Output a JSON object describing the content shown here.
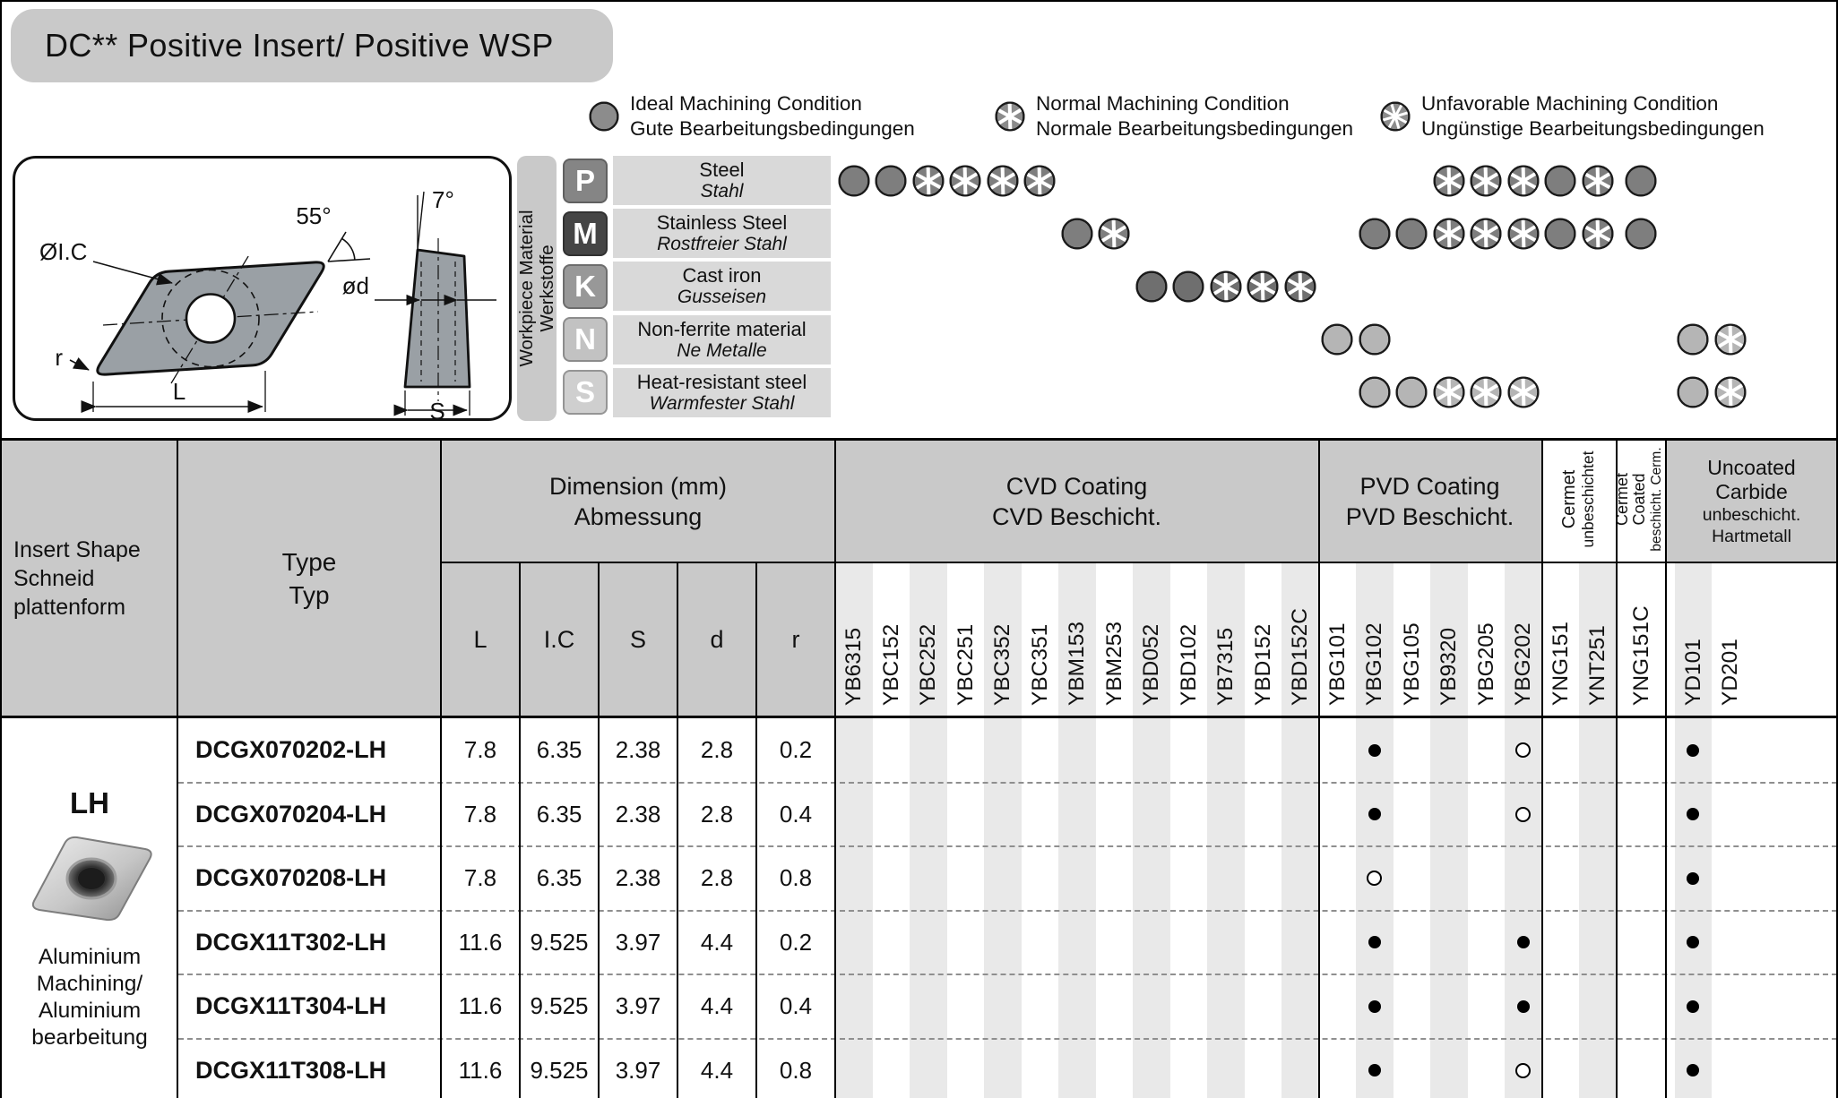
{
  "title": "DC** Positive Insert/ Positive WSP",
  "legend": [
    {
      "line1": "Ideal Machining Condition",
      "line2": "Gute Bearbeitungsbedingungen"
    },
    {
      "line1": "Normal Machining Condition",
      "line2": "Normale Bearbeitungsbedingungen"
    },
    {
      "line1": "Unfavorable Machining Condition",
      "line2": "Ungünstige Bearbeitungsbedingungen"
    }
  ],
  "drawing": {
    "angle_main": "55°",
    "angle_side": "7°",
    "ic": "ØI.C",
    "od": "ød",
    "r": "r",
    "L": "L",
    "S": "S"
  },
  "workpiece": {
    "side_label_line1": "Workpiece Material",
    "side_label_line2": "Werkstoffe",
    "rows": [
      {
        "code": "P",
        "name_en": "Steel",
        "name_de": "Stahl",
        "box_color": "#858585",
        "circle_color": "#7e7e7e",
        "marks": [
          {
            "col": "YB6315",
            "t": "ideal"
          },
          {
            "col": "YBC152",
            "t": "ideal"
          },
          {
            "col": "YBC252",
            "t": "normal"
          },
          {
            "col": "YBC251",
            "t": "normal"
          },
          {
            "col": "YBC352",
            "t": "normal"
          },
          {
            "col": "YBC351",
            "t": "normal"
          },
          {
            "col": "YB9320",
            "t": "normal"
          },
          {
            "col": "YBG205",
            "t": "normal"
          },
          {
            "col": "YBG202",
            "t": "normal"
          },
          {
            "col": "YNG151",
            "t": "ideal"
          },
          {
            "col": "YNT251",
            "t": "normal"
          },
          {
            "col": "YNG151C",
            "t": "ideal"
          }
        ]
      },
      {
        "code": "M",
        "name_en": "Stainless Steel",
        "name_de": "Rostfreier Stahl",
        "box_color": "#454545",
        "circle_color": "#7e7e7e",
        "marks": [
          {
            "col": "YBM153",
            "t": "ideal"
          },
          {
            "col": "YBM253",
            "t": "normal"
          },
          {
            "col": "YBG102",
            "t": "ideal"
          },
          {
            "col": "YBG105",
            "t": "ideal"
          },
          {
            "col": "YB9320",
            "t": "normal"
          },
          {
            "col": "YBG205",
            "t": "normal"
          },
          {
            "col": "YBG202",
            "t": "normal"
          },
          {
            "col": "YNG151",
            "t": "ideal"
          },
          {
            "col": "YNT251",
            "t": "normal"
          },
          {
            "col": "YNG151C",
            "t": "ideal"
          }
        ]
      },
      {
        "code": "K",
        "name_en": "Cast iron",
        "name_de": "Gusseisen",
        "box_color": "#989898",
        "circle_color": "#6f6f6f",
        "marks": [
          {
            "col": "YBD052",
            "t": "ideal"
          },
          {
            "col": "YBD102",
            "t": "ideal"
          },
          {
            "col": "YB7315",
            "t": "normal"
          },
          {
            "col": "YBD152",
            "t": "normal"
          },
          {
            "col": "YBD152C",
            "t": "normal"
          }
        ]
      },
      {
        "code": "N",
        "name_en": "Non-ferrite material",
        "name_de": "Ne Metalle",
        "box_color": "#c2c2c2",
        "circle_color": "#b5b5b5",
        "marks": [
          {
            "col": "YBG101",
            "t": "ideal"
          },
          {
            "col": "YBG102",
            "t": "ideal"
          },
          {
            "col": "YD101",
            "t": "ideal"
          },
          {
            "col": "YD201",
            "t": "normal"
          }
        ]
      },
      {
        "code": "S",
        "name_en": "Heat-resistant steel",
        "name_de": "Warmfester Stahl",
        "box_color": "#cfcfcf",
        "circle_color": "#b5b5b5",
        "marks": [
          {
            "col": "YBG102",
            "t": "ideal"
          },
          {
            "col": "YBG105",
            "t": "ideal"
          },
          {
            "col": "YB9320",
            "t": "normal"
          },
          {
            "col": "YBG205",
            "t": "normal"
          },
          {
            "col": "YBG202",
            "t": "normal"
          },
          {
            "col": "YD101",
            "t": "ideal"
          },
          {
            "col": "YD201",
            "t": "normal"
          }
        ]
      }
    ]
  },
  "table": {
    "headers": {
      "insert_shape": [
        "Insert Shape",
        "Schneid",
        "plattenform"
      ],
      "type": [
        "Type",
        "Typ"
      ],
      "dimension": [
        "Dimension (mm)",
        "Abmessung"
      ],
      "dim_cols": [
        "L",
        "I.C",
        "S",
        "d",
        "r"
      ],
      "cvd": [
        "CVD Coating",
        "CVD Beschicht."
      ],
      "pvd": [
        "PVD Coating",
        "PVD Beschicht."
      ],
      "cermet_uncoated": [
        "Cermet",
        "unbeschichtet"
      ],
      "cermet_coated": [
        "Cermet",
        "Coated",
        "beschicht. Cerm."
      ],
      "uncoated_carbide": [
        "Uncoated",
        "Carbide",
        "unbeschicht.",
        "Hartmetall"
      ]
    },
    "coating_columns": {
      "cvd": [
        "YB6315",
        "YBC152",
        "YBC252",
        "YBC251",
        "YBC352",
        "YBC351",
        "YBM153",
        "YBM253",
        "YBD052",
        "YBD102",
        "YB7315",
        "YBD152",
        "YBD152C"
      ],
      "pvd": [
        "YBG101",
        "YBG102",
        "YBG105",
        "YB9320",
        "YBG205",
        "YBG202"
      ],
      "cermet_uncoated": [
        "YNG151",
        "YNT251"
      ],
      "cermet_coated": [
        "YNG151C"
      ],
      "uncoated_carbide": [
        "YD101",
        "YD201"
      ]
    },
    "group": {
      "shape_code": "LH",
      "desc_lines": [
        "Aluminium",
        "Machining/",
        "Aluminium",
        "bearbeitung"
      ]
    },
    "rows": [
      {
        "type": "DCGX070202-LH",
        "dims": [
          "7.8",
          "6.35",
          "2.38",
          "2.8",
          "0.2"
        ],
        "marks": [
          {
            "col": "YBG102",
            "m": "filled"
          },
          {
            "col": "YBG202",
            "m": "open"
          },
          {
            "col": "YD101",
            "m": "filled"
          }
        ]
      },
      {
        "type": "DCGX070204-LH",
        "dims": [
          "7.8",
          "6.35",
          "2.38",
          "2.8",
          "0.4"
        ],
        "marks": [
          {
            "col": "YBG102",
            "m": "filled"
          },
          {
            "col": "YBG202",
            "m": "open"
          },
          {
            "col": "YD101",
            "m": "filled"
          }
        ]
      },
      {
        "type": "DCGX070208-LH",
        "dims": [
          "7.8",
          "6.35",
          "2.38",
          "2.8",
          "0.8"
        ],
        "marks": [
          {
            "col": "YBG102",
            "m": "open"
          },
          {
            "col": "YD101",
            "m": "filled"
          }
        ]
      },
      {
        "type": "DCGX11T302-LH",
        "dims": [
          "11.6",
          "9.525",
          "3.97",
          "4.4",
          "0.2"
        ],
        "marks": [
          {
            "col": "YBG102",
            "m": "filled"
          },
          {
            "col": "YBG202",
            "m": "filled"
          },
          {
            "col": "YD101",
            "m": "filled"
          }
        ]
      },
      {
        "type": "DCGX11T304-LH",
        "dims": [
          "11.6",
          "9.525",
          "3.97",
          "4.4",
          "0.4"
        ],
        "marks": [
          {
            "col": "YBG102",
            "m": "filled"
          },
          {
            "col": "YBG202",
            "m": "filled"
          },
          {
            "col": "YD101",
            "m": "filled"
          }
        ]
      },
      {
        "type": "DCGX11T308-LH",
        "dims": [
          "11.6",
          "9.525",
          "3.97",
          "4.4",
          "0.8"
        ],
        "marks": [
          {
            "col": "YBG102",
            "m": "filled"
          },
          {
            "col": "YBG202",
            "m": "open"
          },
          {
            "col": "YD101",
            "m": "filled"
          }
        ]
      }
    ]
  },
  "colors": {
    "header_bg": "#c9c9c9",
    "stripe": "#e9e9e9",
    "name_cell_bg": "#d9d9d9",
    "title_bg": "#c9c9c9",
    "ink": "#111111"
  }
}
